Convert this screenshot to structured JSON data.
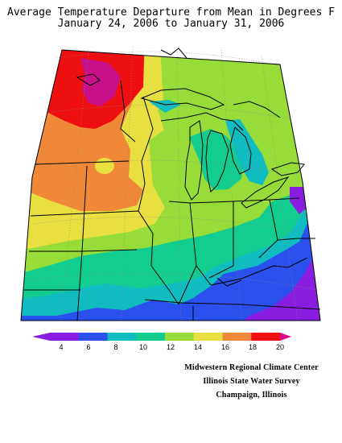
{
  "header": {
    "title_line1": "Average Temperature Departure from Mean in Degrees F",
    "title_line2": "January 24, 2006 to January 31, 2006"
  },
  "legend": {
    "ticks": [
      "4",
      "6",
      "8",
      "10",
      "12",
      "14",
      "16",
      "18",
      "20"
    ],
    "colors": [
      "#8a1ee0",
      "#2a50ee",
      "#10bcc0",
      "#12cc90",
      "#98dc3a",
      "#e8e040",
      "#ef8838",
      "#ee1010",
      "#dd0a88"
    ]
  },
  "credits": {
    "line1": "Midwestern Regional Climate Center",
    "line2": "Illinois State Water Survey",
    "line3": "Champaign, Illinois"
  },
  "map_colors": {
    "band_20": "#c8108a",
    "band_18": "#ee1010",
    "band_16": "#ef8838",
    "band_14": "#e8e040",
    "band_12": "#98dc3a",
    "band_10": "#12cc90",
    "band_8": "#10bcc0",
    "band_6": "#2a50ee",
    "band_4": "#8a1ee0"
  }
}
